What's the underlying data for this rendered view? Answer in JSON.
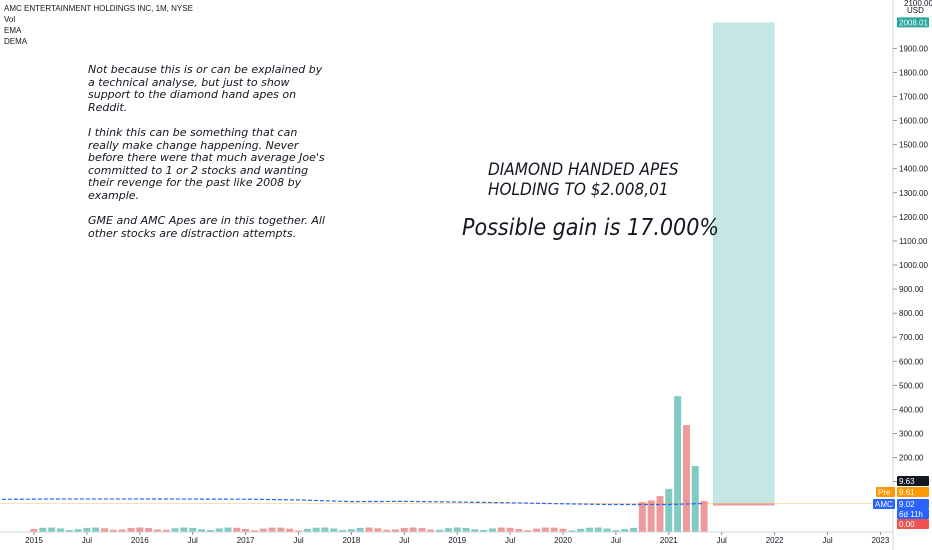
{
  "header": {
    "title": "AMC ENTERTAINMENT HOLDINGS INC, 1M, NYSE",
    "indicators": [
      "Vol",
      "EMA",
      "DEMA"
    ]
  },
  "annotations": {
    "note_paragraphs": [
      "Not because this is or can be explained by a technical analyse, but just to show support to the diamond hand apes on Reddit.",
      "I think this can be something that can really make change happening. Never before there were that much average Joe's committed to 1 or  2 stocks and wanting their revenge for the past like 2008 by example.",
      "GME and AMC Apes are in this together. All other stocks are distraction attempts."
    ],
    "headline_1": "DIAMOND HANDED APES",
    "headline_2": "HOLDING TO $2.008,01",
    "headline_3": "Possible gain is 17.000%"
  },
  "price_axis": {
    "unit": "USD",
    "top_label": "2100.00",
    "ticks": [
      "1900.00",
      "1800.00",
      "1700.00",
      "1600.00",
      "1500.00",
      "1400.00",
      "1300.00",
      "1200.00",
      "1100.00",
      "1000.00",
      "900.00",
      "800.00",
      "700.00",
      "600.00",
      "500.00",
      "400.00",
      "300.00",
      "200.00",
      "100.00"
    ]
  },
  "time_axis": {
    "ticks": [
      "2015",
      "Jul",
      "2016",
      "Jul",
      "2017",
      "Jul",
      "2018",
      "Jul",
      "2019",
      "Jul",
      "2020",
      "Jul",
      "2021",
      "Jul",
      "2022",
      "Jul",
      "2023"
    ]
  },
  "price_tags": [
    {
      "label": "2008.01",
      "value": 2008.01,
      "color": "#26a69a"
    },
    {
      "label": "9.63",
      "value": 9.63,
      "color": "#131722"
    },
    {
      "label": "Pre",
      "value": 9.61,
      "color": "#ff9800"
    },
    {
      "label": "9.61",
      "value": 9.61,
      "color": "#ff9800"
    },
    {
      "label": "AMC",
      "value": 9.02,
      "color": "#2962ff"
    },
    {
      "label": "9.02",
      "value": 9.02,
      "color": "#2962ff"
    },
    {
      "label": "6d 11h",
      "value": 9.02,
      "color": "#2962ff"
    },
    {
      "label": "0.00",
      "value": 0.0,
      "color": "#ef5350"
    }
  ],
  "chart_data": {
    "type": "bar",
    "title": "AMC ENTERTAINMENT HOLDINGS INC, 1M, NYSE",
    "y_unit": "USD",
    "ylim": [
      0,
      2100
    ],
    "xlim": [
      "2014-08",
      "2023-04"
    ],
    "grid": false,
    "projection": {
      "label": "2008.01",
      "entry": 9.02,
      "target": 2008.01,
      "from": "2021-06",
      "to": "2022-01"
    },
    "volume_bars": {
      "note": "volume values read against the price scale as drawn",
      "x": [
        "2020-10",
        "2020-11",
        "2020-12",
        "2021-01",
        "2021-02",
        "2021-03",
        "2021-04",
        "2021-05"
      ],
      "values": [
        15,
        22,
        40,
        70,
        455,
        335,
        165,
        20
      ],
      "colors": [
        "#ef9a9a",
        "#ef9a9a",
        "#ef9a9a",
        "#80cbc4",
        "#80cbc4",
        "#ef9a9a",
        "#80cbc4",
        "#ef9a9a"
      ]
    },
    "price_line": {
      "x": [
        "2014-08",
        "2015-04",
        "2016-01",
        "2017-01",
        "2017-07",
        "2018-01",
        "2018-07",
        "2019-07",
        "2020-01",
        "2020-06",
        "2021-01",
        "2021-05"
      ],
      "values": [
        26,
        28,
        28,
        27,
        24,
        17,
        18,
        12,
        8,
        5,
        5,
        9.02
      ]
    }
  }
}
